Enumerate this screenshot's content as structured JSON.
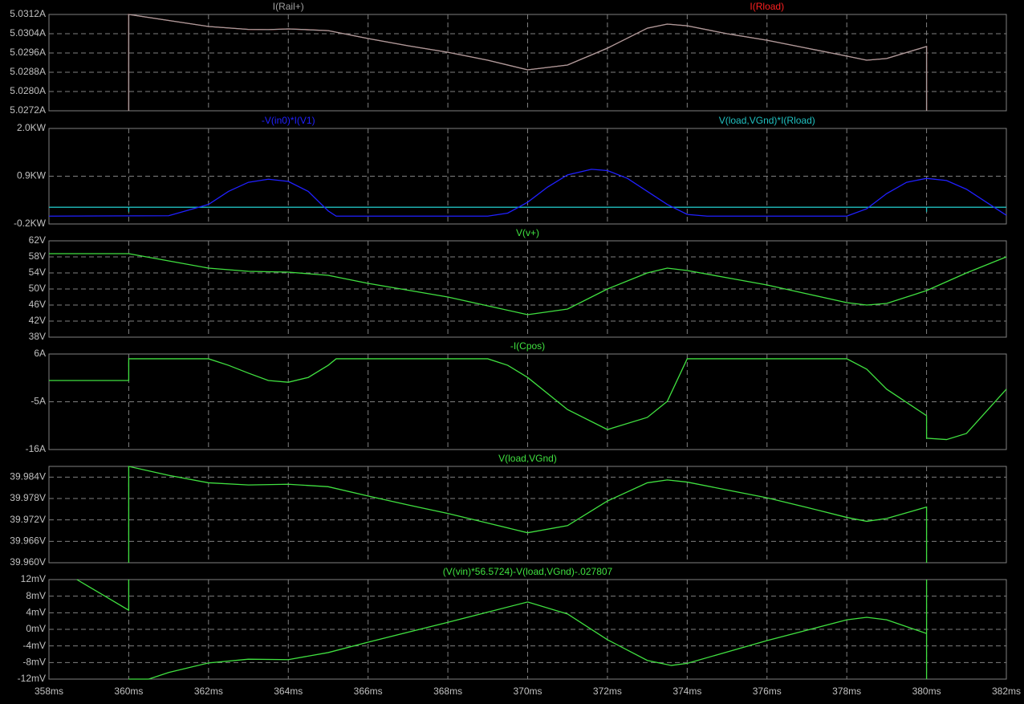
{
  "x_axis": {
    "xlim": [
      358,
      382
    ],
    "xticks": [
      {
        "value": 358,
        "label": "358ms"
      },
      {
        "value": 360,
        "label": "360ms"
      },
      {
        "value": 362,
        "label": "362ms"
      },
      {
        "value": 364,
        "label": "364ms"
      },
      {
        "value": 366,
        "label": "366ms"
      },
      {
        "value": 368,
        "label": "368ms"
      },
      {
        "value": 370,
        "label": "370ms"
      },
      {
        "value": 372,
        "label": "372ms"
      },
      {
        "value": 374,
        "label": "374ms"
      },
      {
        "value": 376,
        "label": "376ms"
      },
      {
        "value": 378,
        "label": "378ms"
      },
      {
        "value": 380,
        "label": "380ms"
      },
      {
        "value": 382,
        "label": "382ms"
      }
    ]
  },
  "chart_data": [
    {
      "type": "line",
      "grid": true,
      "ylim": [
        5.0272,
        5.0312
      ],
      "yticks": [
        {
          "value": 5.0312,
          "label": "5.0312A"
        },
        {
          "value": 5.0304,
          "label": "5.0304A"
        },
        {
          "value": 5.0296,
          "label": "5.0296A"
        },
        {
          "value": 5.0288,
          "label": "5.0288A"
        },
        {
          "value": 5.028,
          "label": "5.0280A"
        },
        {
          "value": 5.0272,
          "label": "5.0272A"
        }
      ],
      "series": [
        {
          "name": "I(Rail+)",
          "color": "#a0a0a0",
          "x": [
            360,
            360,
            361,
            362,
            363,
            363.5,
            364,
            365,
            366,
            367,
            368,
            369,
            370,
            371,
            372,
            373,
            373.5,
            374,
            375,
            376,
            377,
            378,
            378.5,
            379,
            380,
            380
          ],
          "values": [
            5.0272,
            5.0312,
            5.03095,
            5.0307,
            5.03058,
            5.03057,
            5.0306,
            5.03053,
            5.0302,
            5.0299,
            5.02963,
            5.0293,
            5.0289,
            5.0291,
            5.0298,
            5.03063,
            5.0308,
            5.03073,
            5.0304,
            5.03013,
            5.0298,
            5.02947,
            5.0293,
            5.02937,
            5.02987,
            5.0272
          ]
        },
        {
          "name": "I(Rload)",
          "color": "#ff2020",
          "x": [
            360,
            360,
            361,
            362,
            363,
            363.5,
            364,
            365,
            366,
            367,
            368,
            369,
            370,
            371,
            372,
            373,
            373.5,
            374,
            375,
            376,
            377,
            378,
            378.5,
            379,
            380,
            380
          ],
          "values": [
            5.0272,
            5.0312,
            5.03095,
            5.0307,
            5.03058,
            5.03057,
            5.0306,
            5.03053,
            5.0302,
            5.0299,
            5.02963,
            5.0293,
            5.0289,
            5.0291,
            5.0298,
            5.03063,
            5.0308,
            5.03073,
            5.0304,
            5.03013,
            5.0298,
            5.02947,
            5.0293,
            5.02937,
            5.02987,
            5.0272
          ]
        }
      ]
    },
    {
      "type": "line",
      "grid": true,
      "ylim": [
        -0.2,
        2.0
      ],
      "yticks": [
        {
          "value": 2.0,
          "label": "2.0KW"
        },
        {
          "value": 0.9,
          "label": "0.9KW"
        },
        {
          "value": -0.2,
          "label": "-0.2KW"
        }
      ],
      "series": [
        {
          "name": "-V(in0)*I(V1)",
          "color": "#2020ff",
          "x": [
            358,
            361,
            362,
            362.5,
            363,
            363.5,
            364,
            364.5,
            365,
            365.2,
            369,
            369.5,
            370,
            370.5,
            371,
            371.6,
            372,
            372.5,
            373,
            373.5,
            374,
            374.5,
            378,
            378.5,
            379,
            379.5,
            380,
            380.5,
            381,
            381.5,
            382
          ],
          "values": [
            -0.02,
            -0.01,
            0.25,
            0.55,
            0.76,
            0.83,
            0.78,
            0.55,
            0.1,
            -0.02,
            -0.02,
            0.05,
            0.3,
            0.65,
            0.93,
            1.06,
            1.03,
            0.85,
            0.55,
            0.25,
            0.02,
            -0.02,
            -0.02,
            0.15,
            0.5,
            0.76,
            0.85,
            0.8,
            0.6,
            0.3,
            0.0
          ]
        },
        {
          "name": "V(load,VGnd)*I(Rload)",
          "color": "#20c0c0",
          "x": [
            358,
            360,
            360,
            360,
            380,
            380,
            380,
            382
          ],
          "values": [
            0.185,
            0.185,
            0.08,
            0.185,
            0.185,
            0.08,
            0.185,
            0.185
          ]
        }
      ]
    },
    {
      "type": "line",
      "grid": true,
      "ylim": [
        38,
        62
      ],
      "yticks": [
        {
          "value": 62,
          "label": "62V"
        },
        {
          "value": 58,
          "label": "58V"
        },
        {
          "value": 54,
          "label": "54V"
        },
        {
          "value": 50,
          "label": "50V"
        },
        {
          "value": 46,
          "label": "46V"
        },
        {
          "value": 42,
          "label": "42V"
        },
        {
          "value": 38,
          "label": "38V"
        }
      ],
      "series": [
        {
          "name": "V(v+)",
          "color": "#40e040",
          "x": [
            358,
            360,
            361,
            362,
            363,
            364,
            365,
            366,
            367,
            368,
            369,
            370,
            371,
            372,
            373,
            373.5,
            374,
            375,
            376,
            377,
            378,
            378.5,
            379,
            380,
            381,
            382
          ],
          "values": [
            58.8,
            58.8,
            57,
            55.2,
            54.4,
            54.2,
            53.4,
            51.4,
            49.7,
            48,
            45.8,
            43.6,
            45,
            50,
            54,
            55.2,
            54.6,
            52.8,
            51,
            48.8,
            46.6,
            46,
            46.4,
            49.6,
            54,
            58
          ]
        }
      ]
    },
    {
      "type": "line",
      "grid": true,
      "ylim": [
        -16,
        6
      ],
      "yticks": [
        {
          "value": 6,
          "label": "6A"
        },
        {
          "value": -5,
          "label": "-5A"
        },
        {
          "value": -16,
          "label": "-16A"
        }
      ],
      "series": [
        {
          "name": "-I(Cpos)",
          "color": "#40e040",
          "x": [
            358,
            360,
            360,
            362,
            362.5,
            363,
            363.5,
            364,
            364.5,
            365,
            365.2,
            369,
            369.5,
            370,
            371,
            372,
            373,
            373.5,
            374,
            378,
            378.5,
            379,
            380,
            380,
            380.5,
            381,
            382
          ],
          "values": [
            -0.1,
            -0.1,
            4.9,
            4.9,
            3.4,
            1.6,
            -0.1,
            -0.5,
            0.6,
            3.4,
            4.9,
            4.9,
            3.4,
            0.6,
            -6.8,
            -11.4,
            -8.6,
            -4.9,
            4.9,
            4.9,
            2.5,
            -2.1,
            -8.2,
            -13.4,
            -13.7,
            -12.3,
            -2.1
          ]
        }
      ]
    },
    {
      "type": "line",
      "grid": true,
      "ylim": [
        39.96,
        39.987
      ],
      "yticks": [
        {
          "value": 39.984,
          "label": "39.984V"
        },
        {
          "value": 39.978,
          "label": "39.978V"
        },
        {
          "value": 39.972,
          "label": "39.972V"
        },
        {
          "value": 39.966,
          "label": "39.966V"
        },
        {
          "value": 39.96,
          "label": "39.960V"
        }
      ],
      "series": [
        {
          "name": "V(load,VGnd)",
          "color": "#40e040",
          "x": [
            360,
            360,
            361,
            362,
            363,
            364,
            365,
            366,
            367,
            368,
            369,
            370,
            371,
            372,
            373,
            373.5,
            374,
            375,
            376,
            377,
            378,
            378.5,
            379,
            380,
            380
          ],
          "values": [
            39.96,
            39.987,
            39.9845,
            39.9824,
            39.9818,
            39.982,
            39.9813,
            39.9787,
            39.9762,
            39.9738,
            39.9711,
            39.9684,
            39.9704,
            39.9773,
            39.9824,
            39.9832,
            39.9826,
            39.9804,
            39.9782,
            39.9755,
            39.9727,
            39.9716,
            39.9724,
            39.9756,
            39.96
          ]
        }
      ]
    },
    {
      "type": "line",
      "grid": true,
      "ylim": [
        -12,
        12
      ],
      "yticks": [
        {
          "value": 12,
          "label": "12mV"
        },
        {
          "value": 8,
          "label": "8mV"
        },
        {
          "value": 4,
          "label": "4mV"
        },
        {
          "value": 0,
          "label": "0mV"
        },
        {
          "value": -4,
          "label": "-4mV"
        },
        {
          "value": -8,
          "label": "-8mV"
        },
        {
          "value": -12,
          "label": "-12mV"
        }
      ],
      "series": [
        {
          "name": "(V(vin)*56.5724)-V(load,VGnd)-.027807",
          "color": "#40e040",
          "x": [
            358.7,
            359,
            360,
            360,
            null,
            360,
            360.5,
            361,
            362,
            363,
            364,
            365,
            366,
            368,
            370,
            371,
            372,
            373,
            373.6,
            374,
            376,
            378,
            378.5,
            379,
            380,
            380,
            380
          ],
          "values": [
            12,
            10.3,
            4.6,
            12,
            null,
            -12,
            -12,
            -10.4,
            -8.1,
            -7.2,
            -7.3,
            -5.6,
            -3.1,
            1.7,
            6.6,
            3.7,
            -2.5,
            -7.5,
            -8.7,
            -8.2,
            -2.7,
            2.3,
            2.9,
            2.3,
            -1,
            -12,
            12
          ]
        }
      ]
    }
  ]
}
